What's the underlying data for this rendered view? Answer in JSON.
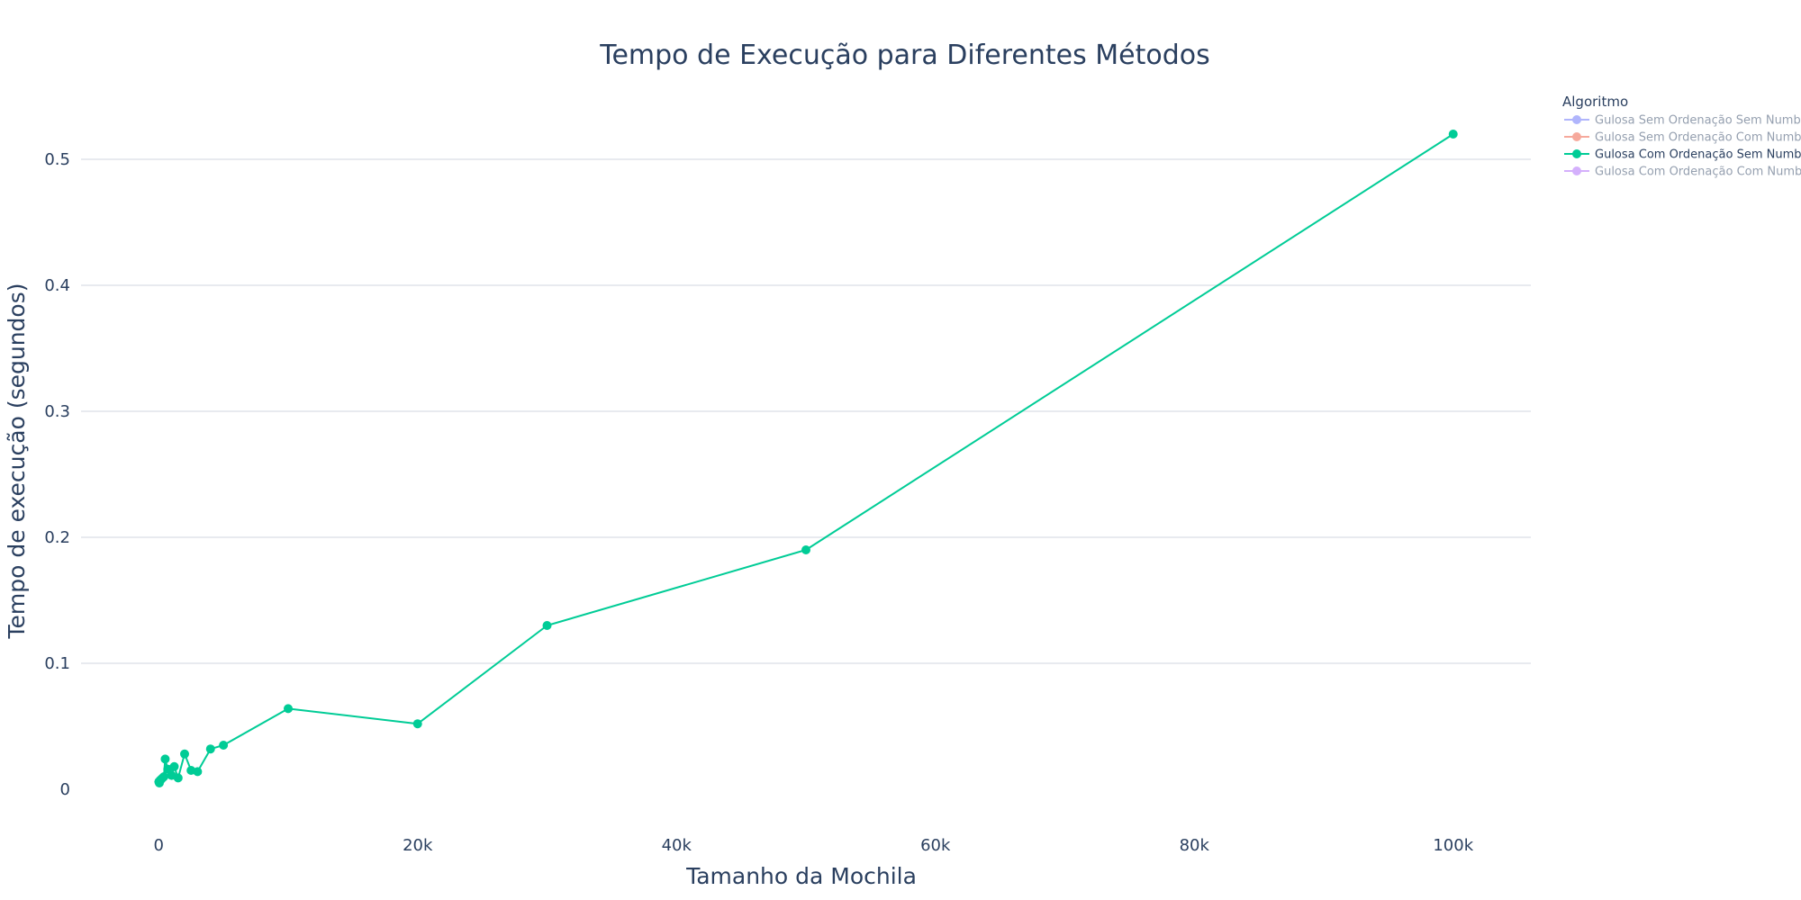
{
  "chart_data": {
    "type": "line",
    "title": "Tempo de Execução para Diferentes Métodos",
    "xlabel": "Tamanho da Mochila",
    "ylabel": "Tempo de execução (segundos)",
    "xlim": [
      -6000,
      106000
    ],
    "ylim": [
      -0.025,
      0.555
    ],
    "x_ticks": [
      0,
      20000,
      40000,
      60000,
      80000,
      100000
    ],
    "x_tick_labels": [
      "0",
      "20k",
      "40k",
      "60k",
      "80k",
      "100k"
    ],
    "y_ticks": [
      0,
      0.1,
      0.2,
      0.3,
      0.4,
      0.5
    ],
    "y_tick_labels": [
      "0",
      "0.1",
      "0.2",
      "0.3",
      "0.4",
      "0.5"
    ],
    "grid": true,
    "legend": {
      "title": "Algoritmo",
      "position": "top-right",
      "entries": [
        {
          "name": "Gulosa Sem Ordenação Sem Numba",
          "color": "#636efa",
          "visible": false
        },
        {
          "name": "Gulosa Sem Ordenação Com Numba",
          "color": "#ef553b",
          "visible": false
        },
        {
          "name": "Gulosa Com Ordenação Sem Numba",
          "color": "#00cc96",
          "visible": true
        },
        {
          "name": "Gulosa Com Ordenação Com Numba",
          "color": "#ab63fa",
          "visible": false
        }
      ]
    },
    "series": [
      {
        "name": "Gulosa Com Ordenação Sem Numba",
        "color": "#00cc96",
        "x": [
          10,
          50,
          100,
          200,
          300,
          400,
          500,
          700,
          1000,
          1200,
          1500,
          2000,
          2500,
          3000,
          4000,
          5000,
          10000,
          20000,
          30000,
          50000,
          100000
        ],
        "y": [
          0.006,
          0.005,
          0.007,
          0.008,
          0.009,
          0.01,
          0.024,
          0.016,
          0.011,
          0.018,
          0.009,
          0.028,
          0.015,
          0.014,
          0.032,
          0.035,
          0.064,
          0.052,
          0.13,
          0.19,
          0.52
        ]
      }
    ]
  }
}
